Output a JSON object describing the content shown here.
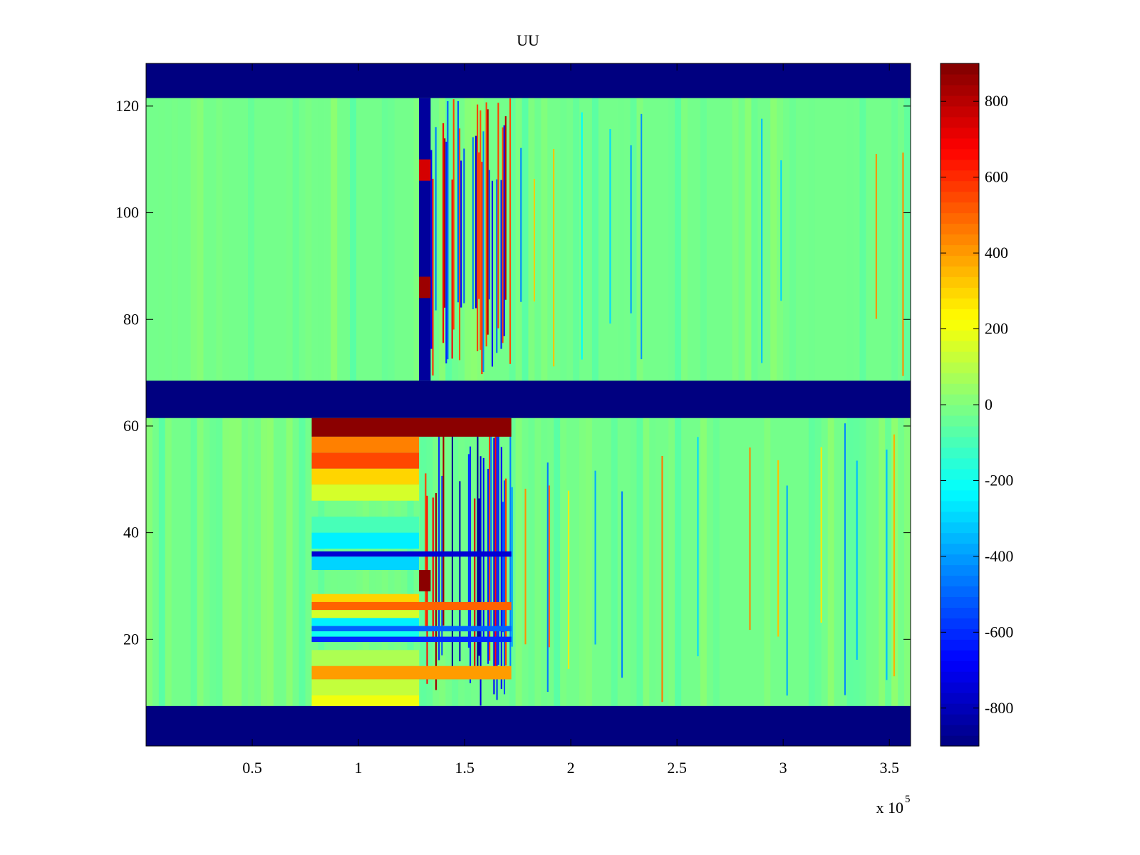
{
  "chart_data": {
    "type": "heatmap",
    "title": "UU",
    "xlabel": "",
    "ylabel": "",
    "x_multiplier_label": {
      "base": "x 10",
      "exponent": "5"
    },
    "x_range": [
      0,
      360000
    ],
    "y_range": [
      0,
      128
    ],
    "x_ticks": [
      {
        "value": 50000,
        "label": "0.5"
      },
      {
        "value": 100000,
        "label": "1"
      },
      {
        "value": 150000,
        "label": "1.5"
      },
      {
        "value": 200000,
        "label": "2"
      },
      {
        "value": 250000,
        "label": "2.5"
      },
      {
        "value": 300000,
        "label": "3"
      },
      {
        "value": 350000,
        "label": "3.5"
      }
    ],
    "y_ticks": [
      {
        "value": 20,
        "label": "20"
      },
      {
        "value": 40,
        "label": "40"
      },
      {
        "value": 60,
        "label": "60"
      },
      {
        "value": 80,
        "label": "80"
      },
      {
        "value": 100,
        "label": "100"
      },
      {
        "value": 120,
        "label": "120"
      }
    ],
    "colormap": "jet",
    "color_range": [
      -900,
      900
    ],
    "colorbar_ticks": [
      {
        "value": 800,
        "label": "800"
      },
      {
        "value": 600,
        "label": "600"
      },
      {
        "value": 400,
        "label": "400"
      },
      {
        "value": 200,
        "label": "200"
      },
      {
        "value": 0,
        "label": "0"
      },
      {
        "value": -200,
        "label": "-200"
      },
      {
        "value": -400,
        "label": "-400"
      },
      {
        "value": -600,
        "label": "-600"
      },
      {
        "value": -800,
        "label": "-800"
      }
    ],
    "background_value": -20,
    "regions": [
      {
        "x": [
          0,
          360000
        ],
        "y": [
          121.5,
          128
        ],
        "value": -900
      },
      {
        "x": [
          0,
          360000
        ],
        "y": [
          61.5,
          68.5
        ],
        "value": -900
      },
      {
        "x": [
          0,
          360000
        ],
        "y": [
          0,
          7.5
        ],
        "value": -900
      },
      {
        "x": [
          128500,
          134000
        ],
        "y": [
          68.5,
          121.5
        ],
        "value": -850
      },
      {
        "x": [
          128500,
          134000
        ],
        "y": [
          84,
          88
        ],
        "value": 850
      },
      {
        "x": [
          128500,
          134000
        ],
        "y": [
          106,
          110
        ],
        "value": 750
      },
      {
        "x": [
          78000,
          172000
        ],
        "y": [
          58,
          61.5
        ],
        "value": 880
      },
      {
        "x": [
          78000,
          128500
        ],
        "y": [
          55,
          58
        ],
        "value": 450
      },
      {
        "x": [
          78000,
          128500
        ],
        "y": [
          52,
          55
        ],
        "value": 550
      },
      {
        "x": [
          78000,
          128500
        ],
        "y": [
          49,
          52
        ],
        "value": 300
      },
      {
        "x": [
          78000,
          128500
        ],
        "y": [
          46,
          49
        ],
        "value": 150
      },
      {
        "x": [
          78000,
          128500
        ],
        "y": [
          40,
          43
        ],
        "value": -100
      },
      {
        "x": [
          78000,
          128500
        ],
        "y": [
          37,
          40
        ],
        "value": -250
      },
      {
        "x": [
          78000,
          172000
        ],
        "y": [
          35.5,
          36.5
        ],
        "value": -750
      },
      {
        "x": [
          78000,
          128500
        ],
        "y": [
          33,
          35.5
        ],
        "value": -300
      },
      {
        "x": [
          128500,
          134000
        ],
        "y": [
          29,
          33
        ],
        "value": 880
      },
      {
        "x": [
          78000,
          128500
        ],
        "y": [
          27,
          28.5
        ],
        "value": 300
      },
      {
        "x": [
          78000,
          172000
        ],
        "y": [
          25.5,
          27
        ],
        "value": 500
      },
      {
        "x": [
          78000,
          128500
        ],
        "y": [
          24,
          25.5
        ],
        "value": 150
      },
      {
        "x": [
          78000,
          128500
        ],
        "y": [
          22.5,
          24
        ],
        "value": -250
      },
      {
        "x": [
          78000,
          172000
        ],
        "y": [
          21.5,
          22.5
        ],
        "value": -500
      },
      {
        "x": [
          78000,
          128500
        ],
        "y": [
          20.5,
          21.5
        ],
        "value": -200
      },
      {
        "x": [
          78000,
          172000
        ],
        "y": [
          19.5,
          20.5
        ],
        "value": -600
      },
      {
        "x": [
          78000,
          128500
        ],
        "y": [
          15,
          18
        ],
        "value": 80
      },
      {
        "x": [
          78000,
          172000
        ],
        "y": [
          12.5,
          15
        ],
        "value": 400
      },
      {
        "x": [
          78000,
          128500
        ],
        "y": [
          9.5,
          12.5
        ],
        "value": 120
      },
      {
        "x": [
          78000,
          128500
        ],
        "y": [
          7.5,
          9.5
        ],
        "value": 200
      }
    ],
    "stripe_zones": [
      {
        "x": [
          134000,
          172000
        ],
        "y": [
          68.5,
          121.5
        ],
        "amplitude": 850,
        "density": 0.55
      },
      {
        "x": [
          128500,
          172000
        ],
        "y": [
          7.5,
          61.5
        ],
        "amplitude": 880,
        "density": 0.6
      },
      {
        "x": [
          172000,
          360000
        ],
        "y": [
          7.5,
          61.5
        ],
        "amplitude": 500,
        "density": 0.05
      },
      {
        "x": [
          172000,
          360000
        ],
        "y": [
          68.5,
          121.5
        ],
        "amplitude": 450,
        "density": 0.04
      }
    ]
  }
}
